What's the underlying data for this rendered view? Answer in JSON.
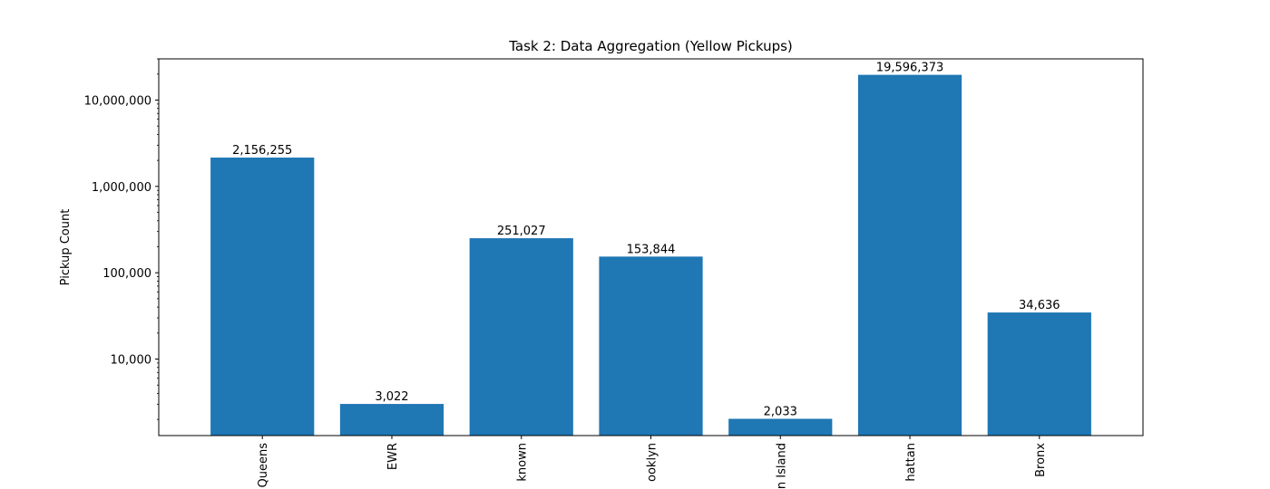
{
  "chart_data": {
    "type": "bar",
    "title": "Task 2: Data Aggregation (Yellow Pickups)",
    "xlabel": "",
    "ylabel": "Pickup Count",
    "y_scale": "log",
    "ylim": [
      1300,
      30000000
    ],
    "y_ticks": [
      10000,
      100000,
      1000000,
      10000000
    ],
    "y_tick_labels": [
      "10,000",
      "100,000",
      "1,000,000",
      "10,000,000"
    ],
    "categories": [
      "Queens",
      "EWR",
      "known",
      "ooklyn",
      "n Island",
      "hattan",
      "Bronx"
    ],
    "values": [
      2156255,
      3022,
      251027,
      153844,
      2033,
      19596373,
      34636
    ],
    "value_labels": [
      "2,156,255",
      "3,022",
      "251,027",
      "153,844",
      "2,033",
      "19,596,373",
      "34,636"
    ],
    "grid": false,
    "legend": "none",
    "bar_color": "#1f77b4"
  }
}
